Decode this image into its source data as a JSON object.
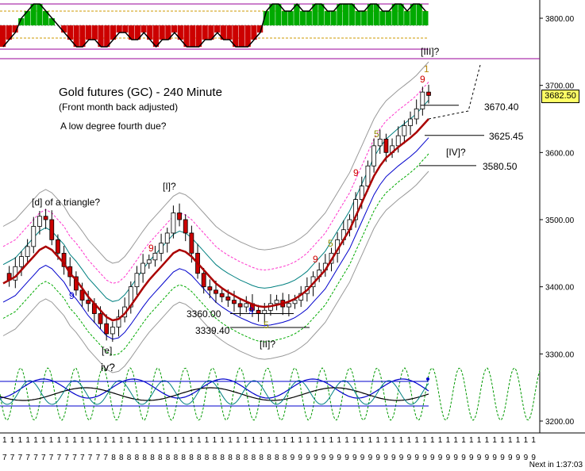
{
  "annotations": {
    "title": "Gold futures (GC) - 240 Minute",
    "subtitle": "(Front month back adjusted)",
    "note": "A low degree fourth due?"
  },
  "levels": [
    {
      "label": "3670.40",
      "value": 3670.4
    },
    {
      "label": "3625.45",
      "value": 3625.45
    },
    {
      "label": "3580.50",
      "value": 3580.5
    },
    {
      "label": "3360.00",
      "value": 3360.0
    },
    {
      "label": "3339.40",
      "value": 3339.4
    }
  ],
  "wave_labels": [
    {
      "text": "[d] of a triangle?",
      "color": "#000000"
    },
    {
      "text": "[I]?",
      "color": "#000000"
    },
    {
      "text": "[e]",
      "color": "#000000"
    },
    {
      "text": "iv?",
      "color": "#000000"
    },
    {
      "text": "[II]?",
      "color": "#000000"
    },
    {
      "text": "[IV]?",
      "color": "#000000"
    },
    {
      "text": "[III]?",
      "color": "#000000"
    },
    {
      "text": "1",
      "color": "#b8860b"
    },
    {
      "text": "9",
      "color": "#d00000"
    },
    {
      "text": "5",
      "color": "#8b8b00"
    },
    {
      "text": "9",
      "color": "#d00000"
    },
    {
      "text": "5",
      "color": "#8b8b00"
    },
    {
      "text": "9",
      "color": "#d00000"
    },
    {
      "text": "9",
      "color": "#d00000"
    },
    {
      "text": "9",
      "color": "#0000cc"
    },
    {
      "text": "9",
      "color": "#0000cc"
    },
    {
      "text": "5",
      "color": "#8b8b00"
    }
  ],
  "current_price": "3682.50",
  "next_bar": "Next in 1:37:03",
  "chart_data": {
    "type": "candlestick",
    "yaxis": {
      "min": 3190,
      "max": 3830,
      "ticks": [
        3200.0,
        3300.0,
        3400.0,
        3500.0,
        3600.0,
        3700.0,
        3800.0
      ],
      "tick_labels": [
        "3200.00",
        "3300.00",
        "3400.00",
        "3500.00",
        "3600.00",
        "3700.00",
        "3800.00"
      ]
    },
    "xaxis": {
      "day_row": "1",
      "month_labels": [
        "7",
        "7",
        "7",
        "7",
        "7",
        "7",
        "7",
        "7",
        "7",
        "7",
        "7",
        "7",
        "7",
        "7",
        "8",
        "8",
        "8",
        "8",
        "8",
        "8",
        "8",
        "8",
        "8",
        "8",
        "8",
        "8",
        "8",
        "8",
        "8",
        "8",
        "8",
        "8",
        "8",
        "8",
        "8",
        "8",
        "8",
        "9",
        "9",
        "9",
        "9",
        "9",
        "9",
        "9",
        "9",
        "9",
        "9",
        "9",
        "9",
        "9",
        "9",
        "9",
        "9",
        "9",
        "9",
        "9",
        "9",
        "9",
        "9",
        "9",
        "9",
        "9",
        "9",
        "9",
        "9",
        "9",
        "9",
        "9",
        "9"
      ]
    },
    "close_path": [
      3420,
      3410,
      3430,
      3445,
      3460,
      3490,
      3505,
      3500,
      3470,
      3450,
      3430,
      3415,
      3395,
      3380,
      3375,
      3360,
      3345,
      3330,
      3340,
      3355,
      3370,
      3400,
      3420,
      3435,
      3440,
      3450,
      3465,
      3480,
      3510,
      3500,
      3480,
      3450,
      3420,
      3400,
      3395,
      3390,
      3385,
      3380,
      3375,
      3370,
      3375,
      3365,
      3360,
      3365,
      3375,
      3380,
      3370,
      3375,
      3380,
      3390,
      3400,
      3415,
      3425,
      3435,
      3450,
      3470,
      3485,
      3500,
      3530,
      3550,
      3580,
      3610,
      3620,
      3600,
      3610,
      3625,
      3640,
      3650,
      3665,
      3690,
      3685
    ],
    "ma_red_path": [
      3405,
      3410,
      3415,
      3425,
      3435,
      3445,
      3455,
      3460,
      3455,
      3445,
      3435,
      3420,
      3410,
      3398,
      3385,
      3375,
      3365,
      3355,
      3350,
      3352,
      3360,
      3372,
      3385,
      3398,
      3410,
      3420,
      3430,
      3440,
      3450,
      3455,
      3452,
      3445,
      3435,
      3425,
      3415,
      3405,
      3398,
      3392,
      3387,
      3382,
      3378,
      3374,
      3371,
      3370,
      3371,
      3373,
      3375,
      3378,
      3382,
      3388,
      3395,
      3405,
      3415,
      3425,
      3440,
      3455,
      3470,
      3485,
      3505,
      3525,
      3545,
      3565,
      3580,
      3592,
      3600,
      3608,
      3615,
      3622,
      3630,
      3640,
      3650
    ],
    "upper_panel": {
      "type": "histogram",
      "zero": 0,
      "values": [
        -3,
        -2,
        -1,
        1,
        2,
        3,
        3,
        2,
        1,
        0,
        -1,
        -2,
        -3,
        -3,
        -2,
        -2,
        -3,
        -3,
        -2,
        -1,
        -1,
        -2,
        -2,
        -1,
        -2,
        -3,
        -2,
        -2,
        -1,
        -2,
        -3,
        -3,
        -3,
        -2,
        -2,
        -1,
        -2,
        -2,
        -3,
        -3,
        -3,
        -2,
        -1,
        2,
        3,
        3,
        2,
        2,
        3,
        2,
        2,
        3,
        3,
        2,
        2,
        3,
        3,
        3,
        2,
        2,
        3,
        3,
        2,
        2,
        3,
        3,
        2,
        3,
        3,
        2
      ]
    },
    "lower_panel": {
      "type": "oscillator"
    }
  }
}
